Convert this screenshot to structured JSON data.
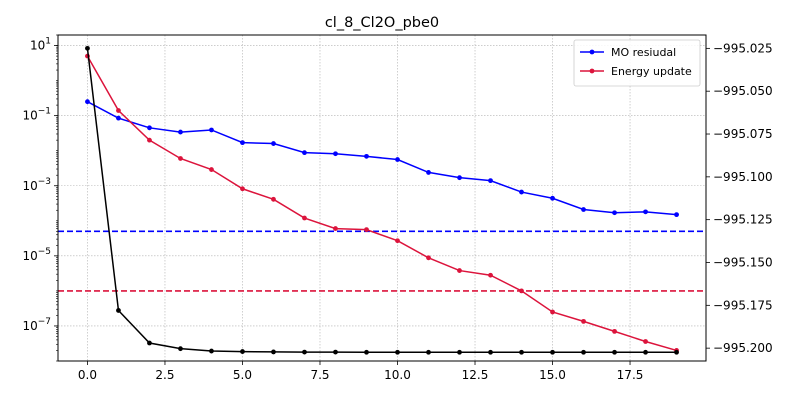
{
  "chart_data": {
    "type": "line",
    "title": "cl_8_Cl2O_pbe0",
    "xlabel": "",
    "ylabel": "",
    "xlim": [
      -0.95,
      19.95
    ],
    "ylim_left": [
      1e-08,
      20
    ],
    "yscale_left": "log",
    "ylim_right": [
      -995.2075,
      -995.0172
    ],
    "xticks": [
      0.0,
      2.5,
      5.0,
      7.5,
      10.0,
      12.5,
      15.0,
      17.5
    ],
    "xtick_labels": [
      "0.0",
      "2.5",
      "5.0",
      "7.5",
      "10.0",
      "12.5",
      "15.0",
      "17.5"
    ],
    "yticks_left": [
      10,
      0.1,
      0.001,
      1e-05,
      1e-07
    ],
    "ytick_left_bases": [
      "10",
      "10",
      "10",
      "10",
      "10"
    ],
    "ytick_left_exps": [
      "1",
      "−1",
      "−3",
      "−5",
      "−7"
    ],
    "yticks_right": [
      -995.025,
      -995.05,
      -995.075,
      -995.1,
      -995.125,
      -995.15,
      -995.175,
      -995.2
    ],
    "ytick_right_labels": [
      "−995.025",
      "−995.050",
      "−995.075",
      "−995.100",
      "−995.125",
      "−995.150",
      "−995.175",
      "−995.200"
    ],
    "grid": true,
    "legend_position": "top-right",
    "x": [
      0,
      1,
      2,
      3,
      4,
      5,
      6,
      7,
      8,
      9,
      10,
      11,
      12,
      13,
      14,
      15,
      16,
      17,
      18,
      19
    ],
    "series": [
      {
        "name": "MO resiudal",
        "axis": "left",
        "color": "#0000ff",
        "values": [
          0.25,
          0.085,
          0.045,
          0.034,
          0.039,
          0.017,
          0.016,
          0.0088,
          0.0082,
          0.0069,
          0.0056,
          0.0024,
          0.0017,
          0.0014,
          0.00066,
          0.00044,
          0.00021,
          0.00017,
          0.00018,
          0.00015
        ]
      },
      {
        "name": "Energy update",
        "axis": "left",
        "color": "#dc143c",
        "values": [
          5.0,
          0.14,
          0.02,
          0.006,
          0.0029,
          0.00082,
          0.00041,
          0.00012,
          6e-05,
          5.6e-05,
          2.7e-05,
          8.8e-06,
          3.8e-06,
          2.8e-06,
          1e-06,
          2.5e-07,
          1.35e-07,
          7e-08,
          3.6e-08,
          2e-08
        ]
      },
      {
        "axis": "right",
        "color": "#000000",
        "values": [
          -995.025,
          -995.178,
          -995.197,
          -995.2003,
          -995.2017,
          -995.202,
          -995.2022,
          -995.2023,
          -995.2023,
          -995.2024,
          -995.2024,
          -995.2024,
          -995.2024,
          -995.2024,
          -995.2024,
          -995.2024,
          -995.2024,
          -995.2024,
          -995.2024,
          -995.2024
        ]
      }
    ],
    "hlines": [
      {
        "value": 5e-05,
        "axis": "left",
        "color": "#0000ff",
        "style": "dashed"
      },
      {
        "value": 1e-06,
        "axis": "left",
        "color": "#dc143c",
        "style": "dashed"
      }
    ]
  }
}
